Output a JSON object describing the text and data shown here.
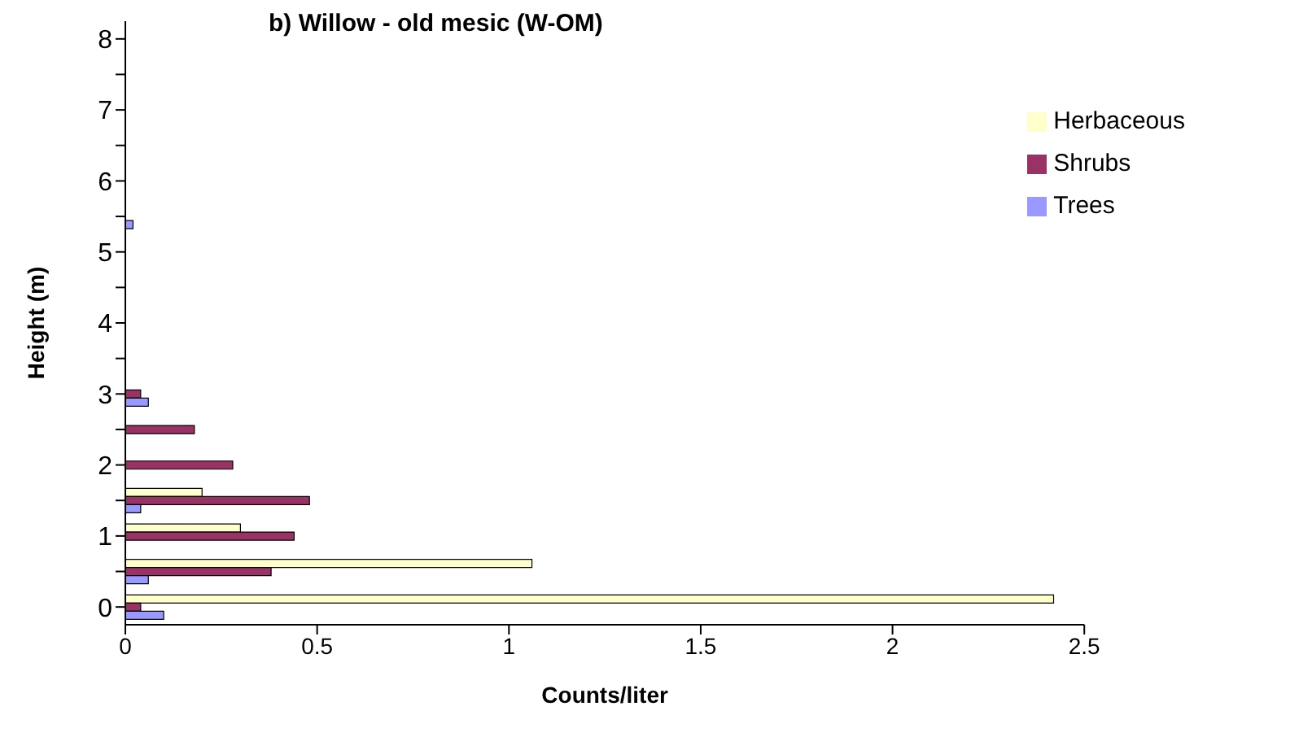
{
  "chart_data": {
    "type": "bar",
    "orientation": "horizontal",
    "title": "b) Willow - old mesic (W-OM)",
    "xlabel": "Counts/liter",
    "ylabel": "Height (m)",
    "categories": [
      "8",
      null,
      "7",
      null,
      "6",
      null,
      "5",
      null,
      "4",
      null,
      "3",
      null,
      "2",
      null,
      "1",
      null,
      "0"
    ],
    "series": [
      {
        "name": "Herbaceous",
        "color": "#ffffcc",
        "values": [
          null,
          null,
          null,
          null,
          null,
          null,
          null,
          null,
          null,
          null,
          null,
          null,
          null,
          0.2,
          0.3,
          1.06,
          2.42
        ]
      },
      {
        "name": "Shrubs",
        "color": "#993366",
        "values": [
          null,
          null,
          null,
          null,
          null,
          null,
          null,
          null,
          null,
          null,
          0.04,
          0.18,
          0.28,
          0.48,
          0.44,
          0.38,
          0.04
        ]
      },
      {
        "name": "Trees",
        "color": "#9999ff",
        "values": [
          null,
          null,
          null,
          null,
          null,
          0.02,
          null,
          null,
          null,
          null,
          0.06,
          null,
          null,
          0.04,
          null,
          0.06,
          0.1
        ]
      }
    ],
    "xlim": [
      0,
      2.5
    ],
    "xticks": [
      0,
      0.5,
      1,
      1.5,
      2,
      2.5
    ],
    "grid": false,
    "legend": "top right"
  }
}
